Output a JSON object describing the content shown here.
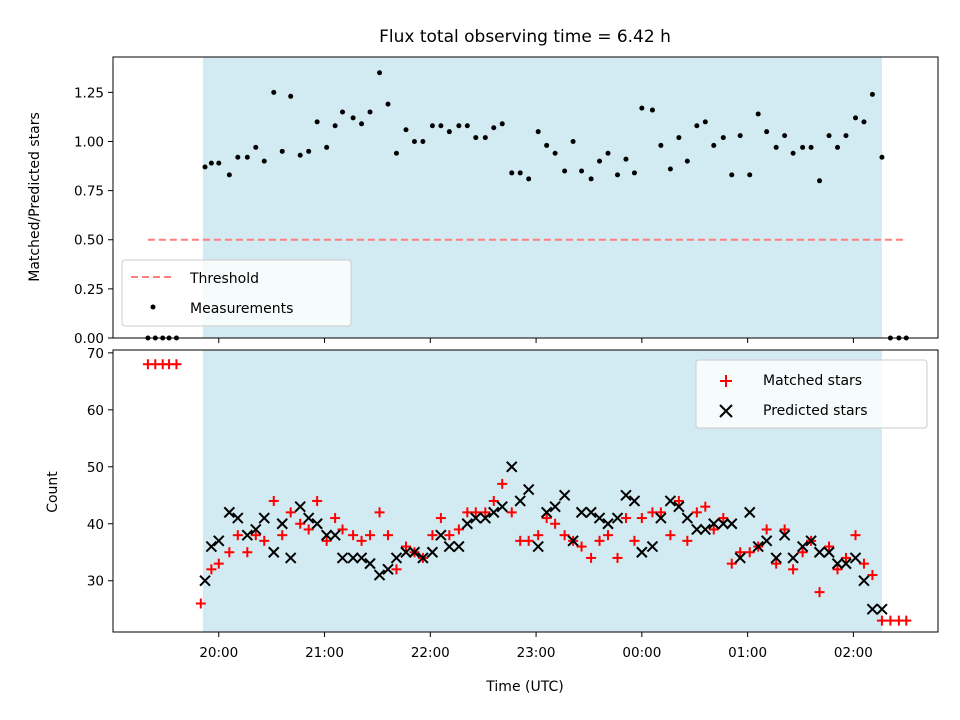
{
  "title": "Flux total observing time = 6.42 h",
  "chart_data": [
    {
      "type": "scatter",
      "panel": "top",
      "ylabel": "Matched/Predicted stars",
      "ylim": [
        0,
        1.43
      ],
      "yticks": [
        0.0,
        0.25,
        0.5,
        0.75,
        1.0,
        1.25
      ],
      "yticklabels": [
        "0.00",
        "0.25",
        "0.50",
        "0.75",
        "1.00",
        "1.25"
      ],
      "xlim_hours": [
        19.0,
        26.8
      ],
      "observing_window_hours": [
        19.85,
        26.27
      ],
      "shade_color": "#add8e6",
      "threshold": {
        "name": "Threshold",
        "value": 0.5,
        "x_range_hours": [
          19.33,
          26.5
        ],
        "color": "#ff7f7f"
      },
      "legend_position": "lower-left",
      "series": [
        {
          "name": "Measurements",
          "color": "#000000",
          "x_hours": [
            19.33,
            19.4,
            19.47,
            19.53,
            19.6,
            19.87,
            19.93,
            20.0,
            20.1,
            20.18,
            20.27,
            20.35,
            20.43,
            20.52,
            20.6,
            20.68,
            20.77,
            20.85,
            20.93,
            21.02,
            21.1,
            21.17,
            21.27,
            21.35,
            21.43,
            21.52,
            21.6,
            21.68,
            21.77,
            21.85,
            21.93,
            22.02,
            22.1,
            22.18,
            22.27,
            22.35,
            22.43,
            22.52,
            22.6,
            22.68,
            22.77,
            22.85,
            22.93,
            23.02,
            23.1,
            23.18,
            23.27,
            23.35,
            23.43,
            23.52,
            23.6,
            23.68,
            23.77,
            23.85,
            23.93,
            24.0,
            24.1,
            24.18,
            24.27,
            24.35,
            24.43,
            24.52,
            24.6,
            24.68,
            24.77,
            24.85,
            24.93,
            25.02,
            25.1,
            25.18,
            25.27,
            25.35,
            25.43,
            25.52,
            25.6,
            25.68,
            25.77,
            25.85,
            25.93,
            26.02,
            26.1,
            26.18,
            26.27,
            26.35,
            26.43,
            26.5
          ],
          "y": [
            0,
            0,
            0,
            0,
            0,
            0.87,
            0.89,
            0.89,
            0.83,
            0.92,
            0.92,
            0.97,
            0.9,
            1.25,
            0.95,
            1.23,
            0.93,
            0.95,
            1.1,
            0.97,
            1.08,
            1.15,
            1.12,
            1.09,
            1.15,
            1.35,
            1.19,
            0.94,
            1.06,
            1.0,
            1.0,
            1.08,
            1.08,
            1.05,
            1.08,
            1.08,
            1.02,
            1.02,
            1.07,
            1.09,
            0.84,
            0.84,
            0.81,
            1.05,
            0.98,
            0.94,
            0.85,
            1.0,
            0.85,
            0.81,
            0.9,
            0.94,
            0.83,
            0.91,
            0.84,
            1.17,
            1.16,
            0.98,
            0.86,
            1.02,
            0.9,
            1.08,
            1.1,
            0.98,
            1.02,
            0.83,
            1.03,
            0.83,
            1.14,
            1.05,
            0.97,
            1.03,
            0.94,
            0.97,
            0.97,
            0.8,
            1.03,
            0.97,
            1.03,
            1.12,
            1.1,
            1.24,
            0.92,
            0,
            0,
            0
          ]
        }
      ]
    },
    {
      "type": "scatter",
      "panel": "bottom",
      "xlabel": "Time (UTC)",
      "ylabel": "Count",
      "ylim": [
        21,
        70.5
      ],
      "yticks": [
        30,
        40,
        50,
        60,
        70
      ],
      "yticklabels": [
        "30",
        "40",
        "50",
        "60",
        "70"
      ],
      "xticks_hours": [
        20,
        21,
        22,
        23,
        24,
        25,
        26
      ],
      "xticklabels": [
        "20:00",
        "21:00",
        "22:00",
        "23:00",
        "00:00",
        "01:00",
        "02:00"
      ],
      "xlim_hours": [
        19.0,
        26.8
      ],
      "observing_window_hours": [
        19.85,
        26.27
      ],
      "shade_color": "#add8e6",
      "legend_position": "upper-right",
      "series": [
        {
          "name": "Matched stars",
          "marker": "plus",
          "color": "#ff0000",
          "x_hours": [
            19.33,
            19.4,
            19.47,
            19.53,
            19.6,
            19.83,
            19.93,
            20.0,
            20.1,
            20.18,
            20.27,
            20.35,
            20.43,
            20.52,
            20.6,
            20.68,
            20.77,
            20.85,
            20.93,
            21.02,
            21.1,
            21.17,
            21.27,
            21.35,
            21.43,
            21.52,
            21.6,
            21.68,
            21.77,
            21.85,
            21.93,
            22.02,
            22.1,
            22.18,
            22.27,
            22.35,
            22.43,
            22.52,
            22.6,
            22.68,
            22.77,
            22.85,
            22.93,
            23.02,
            23.1,
            23.18,
            23.27,
            23.35,
            23.43,
            23.52,
            23.6,
            23.68,
            23.77,
            23.85,
            23.93,
            24.0,
            24.1,
            24.18,
            24.27,
            24.35,
            24.43,
            24.52,
            24.6,
            24.68,
            24.77,
            24.85,
            24.93,
            25.02,
            25.1,
            25.18,
            25.27,
            25.35,
            25.43,
            25.52,
            25.6,
            25.68,
            25.77,
            25.85,
            25.93,
            26.02,
            26.1,
            26.18,
            26.27,
            26.35,
            26.43,
            26.5
          ],
          "y": [
            68,
            68,
            68,
            68,
            68,
            26,
            32,
            33,
            35,
            38,
            35,
            38,
            37,
            44,
            38,
            42,
            40,
            39,
            44,
            37,
            41,
            39,
            38,
            37,
            38,
            42,
            38,
            32,
            36,
            35,
            34,
            38,
            41,
            38,
            39,
            42,
            42,
            42,
            44,
            47,
            42,
            37,
            37,
            38,
            41,
            40,
            38,
            37,
            36,
            34,
            37,
            38,
            34,
            41,
            37,
            41,
            42,
            42,
            38,
            44,
            37,
            42,
            43,
            39,
            41,
            33,
            35,
            35,
            36,
            39,
            33,
            39,
            32,
            35,
            37,
            28,
            36,
            32,
            34,
            38,
            33,
            31,
            23,
            23,
            23,
            23
          ]
        },
        {
          "name": "Predicted stars",
          "marker": "x",
          "color": "#000000",
          "x_hours": [
            19.87,
            19.93,
            20.0,
            20.1,
            20.18,
            20.27,
            20.35,
            20.43,
            20.52,
            20.6,
            20.68,
            20.77,
            20.85,
            20.93,
            21.02,
            21.1,
            21.17,
            21.27,
            21.35,
            21.43,
            21.52,
            21.6,
            21.68,
            21.77,
            21.85,
            21.93,
            22.02,
            22.1,
            22.18,
            22.27,
            22.35,
            22.43,
            22.52,
            22.6,
            22.68,
            22.77,
            22.85,
            22.93,
            23.02,
            23.1,
            23.18,
            23.27,
            23.35,
            23.43,
            23.52,
            23.6,
            23.68,
            23.77,
            23.85,
            23.93,
            24.0,
            24.1,
            24.18,
            24.27,
            24.35,
            24.43,
            24.52,
            24.6,
            24.68,
            24.77,
            24.85,
            24.93,
            25.02,
            25.1,
            25.18,
            25.27,
            25.35,
            25.43,
            25.52,
            25.6,
            25.68,
            25.77,
            25.85,
            25.93,
            26.02,
            26.1,
            26.18,
            26.27
          ],
          "y": [
            30,
            36,
            37,
            42,
            41,
            38,
            39,
            41,
            35,
            40,
            34,
            43,
            41,
            40,
            38,
            38,
            34,
            34,
            34,
            33,
            31,
            32,
            34,
            35,
            35,
            34,
            35,
            38,
            36,
            36,
            40,
            41,
            41,
            42,
            43,
            50,
            44,
            46,
            36,
            42,
            43,
            45,
            37,
            42,
            42,
            41,
            40,
            41,
            45,
            44,
            35,
            36,
            41,
            44,
            43,
            41,
            39,
            39,
            40,
            40,
            40,
            34,
            42,
            36,
            37,
            34,
            38,
            34,
            36,
            37,
            35,
            35,
            33,
            33,
            34,
            30,
            25,
            25
          ]
        }
      ]
    }
  ]
}
